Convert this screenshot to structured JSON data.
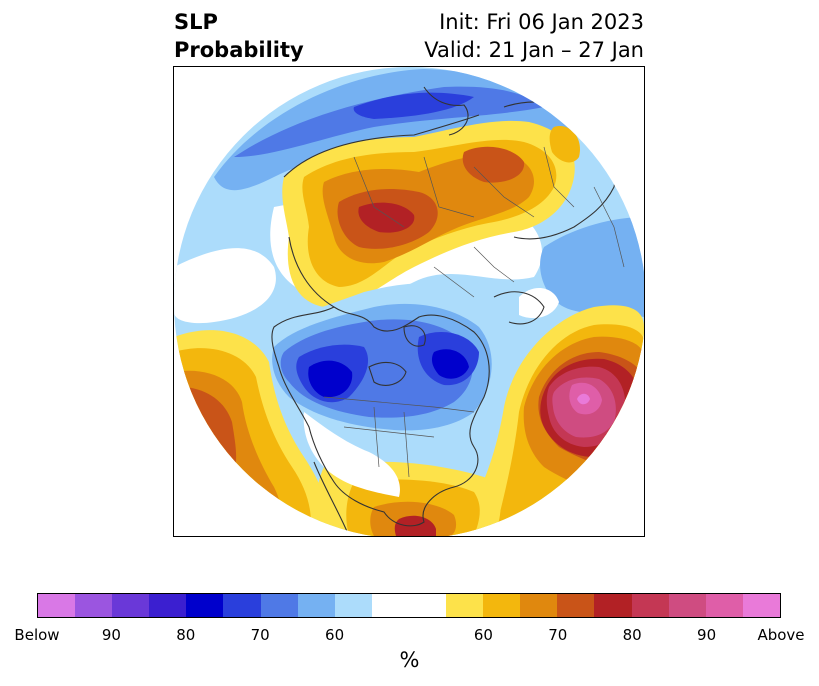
{
  "title": {
    "left_line1": "SLP",
    "left_line2": "Probability",
    "right_line1": "Init: Fri 06 Jan 2023",
    "right_line2": "Valid: 21 Jan – 27 Jan"
  },
  "colorbar": {
    "label": "%",
    "ticks": [
      "Below",
      "90",
      "80",
      "70",
      "60",
      "60",
      "70",
      "80",
      "90",
      "Above"
    ],
    "below_colors": [
      "#d978e6",
      "#9b55e0",
      "#6a38d8",
      "#3b1fd0",
      "#0000cc",
      "#2a3fdc",
      "#4f79e6",
      "#75b1f2",
      "#acdcfb"
    ],
    "neutral_color": "#ffffff",
    "above_colors": [
      "#fde24a",
      "#f3b70d",
      "#e0880e",
      "#c95418",
      "#b22125",
      "#c43754",
      "#cf4c81",
      "#df5ea8",
      "#e97ad9"
    ]
  },
  "map": {
    "projection": "north-polar-stereographic",
    "features": [
      "coastlines",
      "country-borders",
      "state-province-borders"
    ]
  }
}
